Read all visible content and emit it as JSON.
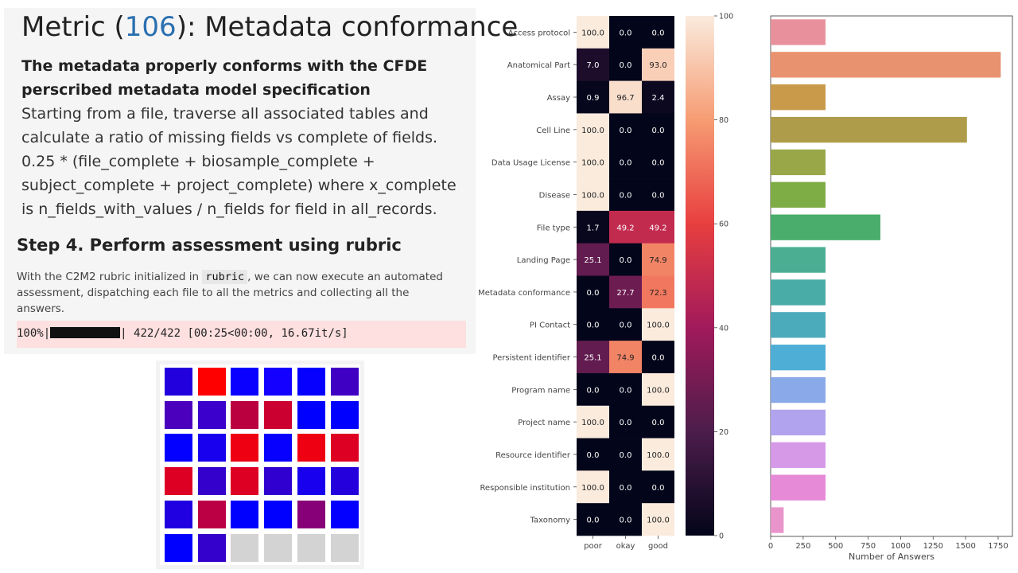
{
  "notebook": {
    "title_prefix": "Metric (",
    "metric_number": "106",
    "title_suffix": "): Metadata conformance",
    "subtitle": "The metadata properly conforms with the CFDE perscribed metadata model specification",
    "description": "Starting from a file, traverse all associated tables and calculate a ratio of missing fields vs complete of fields. 0.25 * (file_complete + biosample_complete + subject_complete + project_complete) where x_complete is n_fields_with_values / n_fields for field in all_records.",
    "step_heading": "Step 4. Perform assessment using rubric",
    "step_text_before": "With the C2M2 rubric initialized in ",
    "step_code": "rubric",
    "step_text_after": ", we can now execute an automated assessment, dispatching each file to all the metrics and collecting all the answers.",
    "progress_percent": "100%|",
    "progress_fraction": 1.0,
    "progress_stats": "| 422/422 [00:25<00:00, 16.67it/s]"
  },
  "chart_data": [
    {
      "type": "heatmap",
      "rows": [
        "Access protocol",
        "Anatomical Part",
        "Assay",
        "Cell Line",
        "Data Usage License",
        "Disease",
        "File type",
        "Landing Page",
        "Metadata conformance",
        "PI Contact",
        "Persistent identifier",
        "Program name",
        "Project name",
        "Resource identifier",
        "Responsible institution",
        "Taxonomy"
      ],
      "columns": [
        "poor",
        "okay",
        "good"
      ],
      "values": [
        [
          100.0,
          0.0,
          0.0
        ],
        [
          7.0,
          0.0,
          93.0
        ],
        [
          0.9,
          96.7,
          2.4
        ],
        [
          100.0,
          0.0,
          0.0
        ],
        [
          100.0,
          0.0,
          0.0
        ],
        [
          100.0,
          0.0,
          0.0
        ],
        [
          1.7,
          49.2,
          49.2
        ],
        [
          25.1,
          0.0,
          74.9
        ],
        [
          0.0,
          27.7,
          72.3
        ],
        [
          0.0,
          0.0,
          100.0
        ],
        [
          25.1,
          74.9,
          0.0
        ],
        [
          0.0,
          0.0,
          100.0
        ],
        [
          100.0,
          0.0,
          0.0
        ],
        [
          0.0,
          0.0,
          100.0
        ],
        [
          100.0,
          0.0,
          0.0
        ],
        [
          0.0,
          0.0,
          100.0
        ]
      ],
      "colorbar_ticks": [
        0,
        20,
        40,
        60,
        80,
        100
      ],
      "colorbar_range": [
        0,
        100
      ]
    },
    {
      "type": "bar",
      "orientation": "horizontal",
      "categories": [
        "Access protocol",
        "Anatomical Part",
        "Assay",
        "Cell Line",
        "Data Usage License",
        "Disease",
        "File type",
        "Landing Page",
        "Metadata conformance",
        "PI Contact",
        "Persistent identifier",
        "Program name",
        "Project name",
        "Resource identifier",
        "Responsible institution",
        "Taxonomy"
      ],
      "values": [
        422,
        1770,
        422,
        1510,
        422,
        422,
        844,
        422,
        422,
        422,
        422,
        422,
        422,
        422,
        422,
        100
      ],
      "colors": [
        "#e8919c",
        "#e8926f",
        "#c99a4a",
        "#ae9c4a",
        "#9aa748",
        "#7fad45",
        "#4aad6c",
        "#4bae93",
        "#4aaca6",
        "#4cabbb",
        "#4faed6",
        "#89a9e8",
        "#b2a3ee",
        "#d599e8",
        "#e68ad7",
        "#ea94cc"
      ],
      "xlabel": "Number of Answers",
      "xticks": [
        0,
        250,
        500,
        750,
        1000,
        1250,
        1500,
        1750
      ],
      "xlim": [
        0,
        1860
      ]
    }
  ],
  "waffle": {
    "cells": [
      [
        "#2200dd",
        "#ff0000",
        "#0a00ff",
        "#1400ff",
        "#0600ff",
        "#4000c4"
      ],
      [
        "#4a00bc",
        "#3c00cc",
        "#bb0040",
        "#cc0030",
        "#0000ff",
        "#0000ff"
      ],
      [
        "#0400ff",
        "#1800ee",
        "#ee0012",
        "#0800ff",
        "#ee0012",
        "#dd0022"
      ],
      [
        "#dd0022",
        "#3400cc",
        "#dd0022",
        "#3000d0",
        "#1800ee",
        "#2400dd"
      ],
      [
        "#2000e0",
        "#bb0044",
        "#0000ff",
        "#0000ff",
        "#880077",
        "#0400ff"
      ],
      [
        "#0000ff",
        "#3300cc",
        "#d3d3d3",
        "#d3d3d3",
        "#d3d3d3",
        "#d3d3d3"
      ]
    ]
  }
}
